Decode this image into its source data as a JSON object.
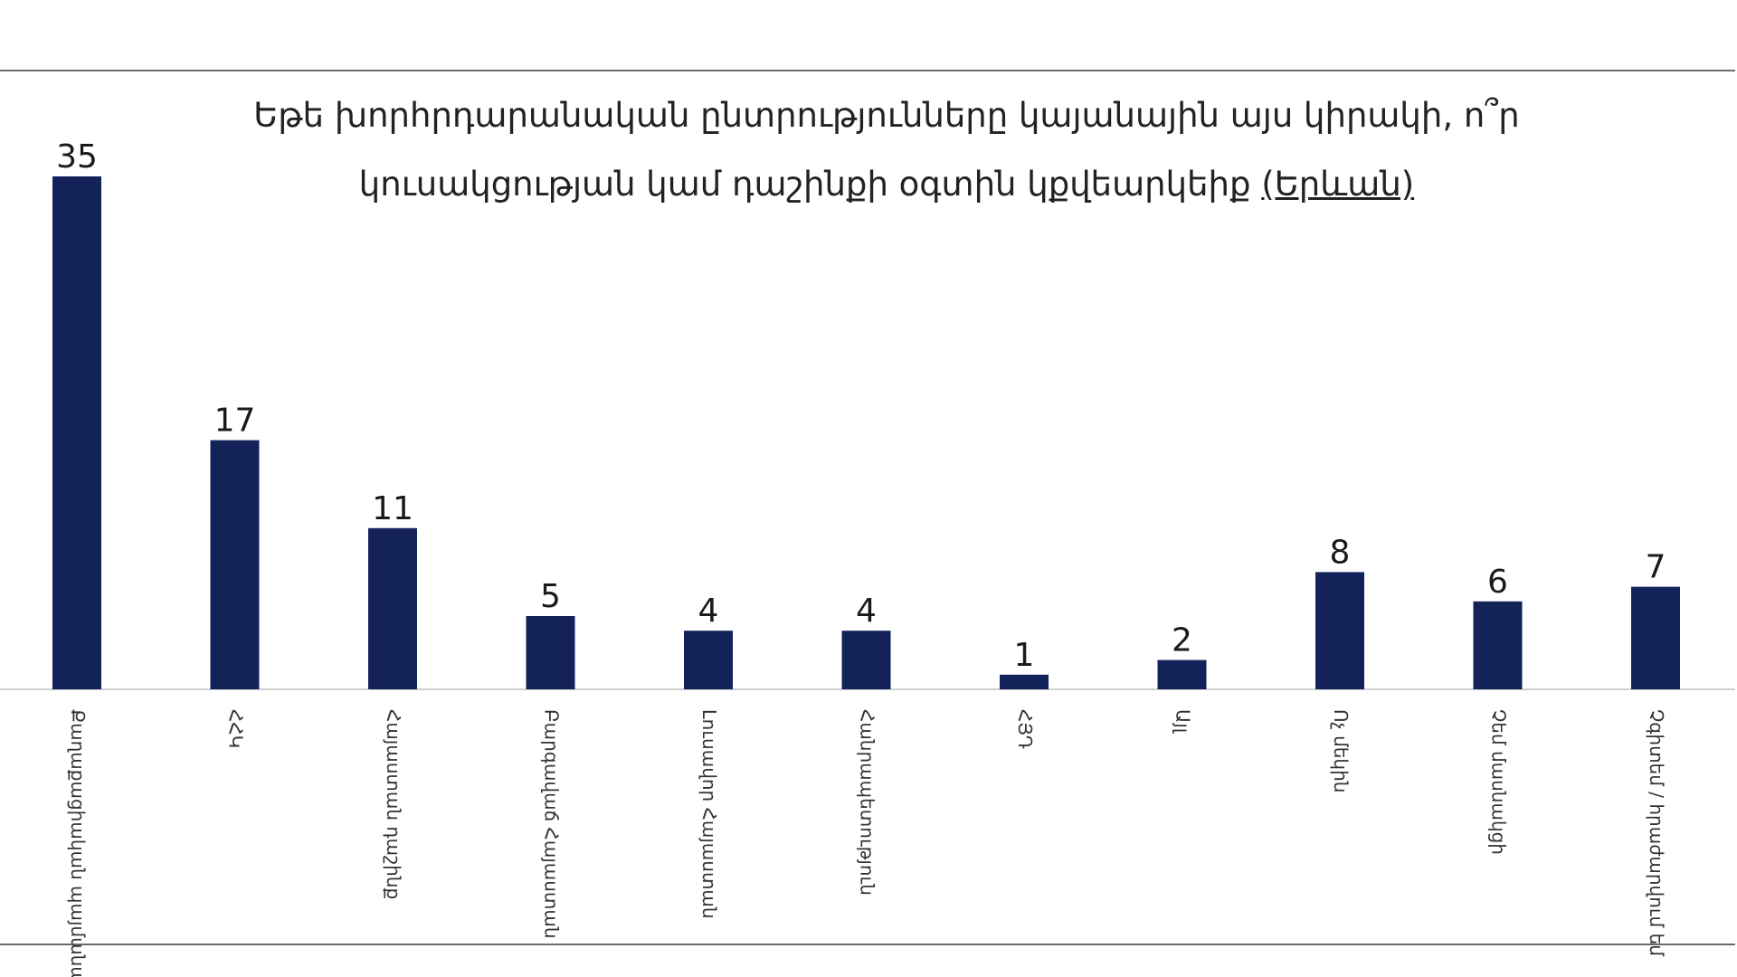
{
  "chart_data": {
    "type": "bar",
    "title_line1": "Եթե խորհրդարանական ընտրությունները կայանային այս կիրակի, ո՞ր",
    "title_line2_main": "կուսակցության կամ դաշինքի օգտին կքվեարկեիք ",
    "title_line2_underlined": "(Երևան)",
    "categories": [
      "Քաղաքացիական պայմանագիր",
      "ՀՀԿ",
      "Հայաստան դաշինք",
      "Բարգավաճ Հայաստան",
      "Լուսավոր Հայաստան",
      "Հանրապետություն",
      "ՀՅԴ",
      "Այլ",
      "Ոչ մեկին",
      "Չեմ մասնակցի",
      "Չգիտեմ / հրաժարվում եմ"
    ],
    "values": [
      35,
      17,
      11,
      5,
      4,
      4,
      1,
      2,
      8,
      6,
      7
    ],
    "ylim": [
      0,
      35
    ],
    "bar_color": "#13235a",
    "grid": false,
    "legend": "none"
  }
}
